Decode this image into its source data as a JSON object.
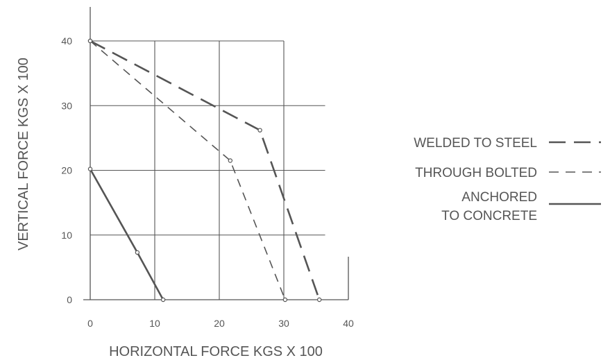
{
  "chart_data": {
    "type": "line",
    "xlabel": "HORIZONTAL FORCE KGS X 100",
    "ylabel": "VERTICAL FORCE KGS X 100",
    "xlim": [
      0,
      40
    ],
    "ylim": [
      0,
      40
    ],
    "xticks": [
      "0",
      "10",
      "20",
      "30",
      "40"
    ],
    "yticks": [
      "0",
      "10",
      "20",
      "30",
      "40"
    ],
    "grid": true,
    "legend_position": "right",
    "series": [
      {
        "name": "WELDED TO STEEL",
        "style": "long-dash",
        "color": "#555555",
        "x": [
          0,
          26.3,
          35.5
        ],
        "y": [
          40,
          26.2,
          0
        ]
      },
      {
        "name": "THROUGH BOLTED",
        "style": "short-dash",
        "color": "#555555",
        "x": [
          0,
          21.7,
          30.2
        ],
        "y": [
          40,
          21.5,
          0
        ]
      },
      {
        "name": "ANCHORED TO CONCRETE",
        "legend_lines": [
          "ANCHORED",
          "TO CONCRETE"
        ],
        "style": "solid",
        "color": "#555555",
        "x": [
          0,
          7.3,
          11.3
        ],
        "y": [
          20.2,
          7.3,
          0
        ]
      }
    ]
  }
}
